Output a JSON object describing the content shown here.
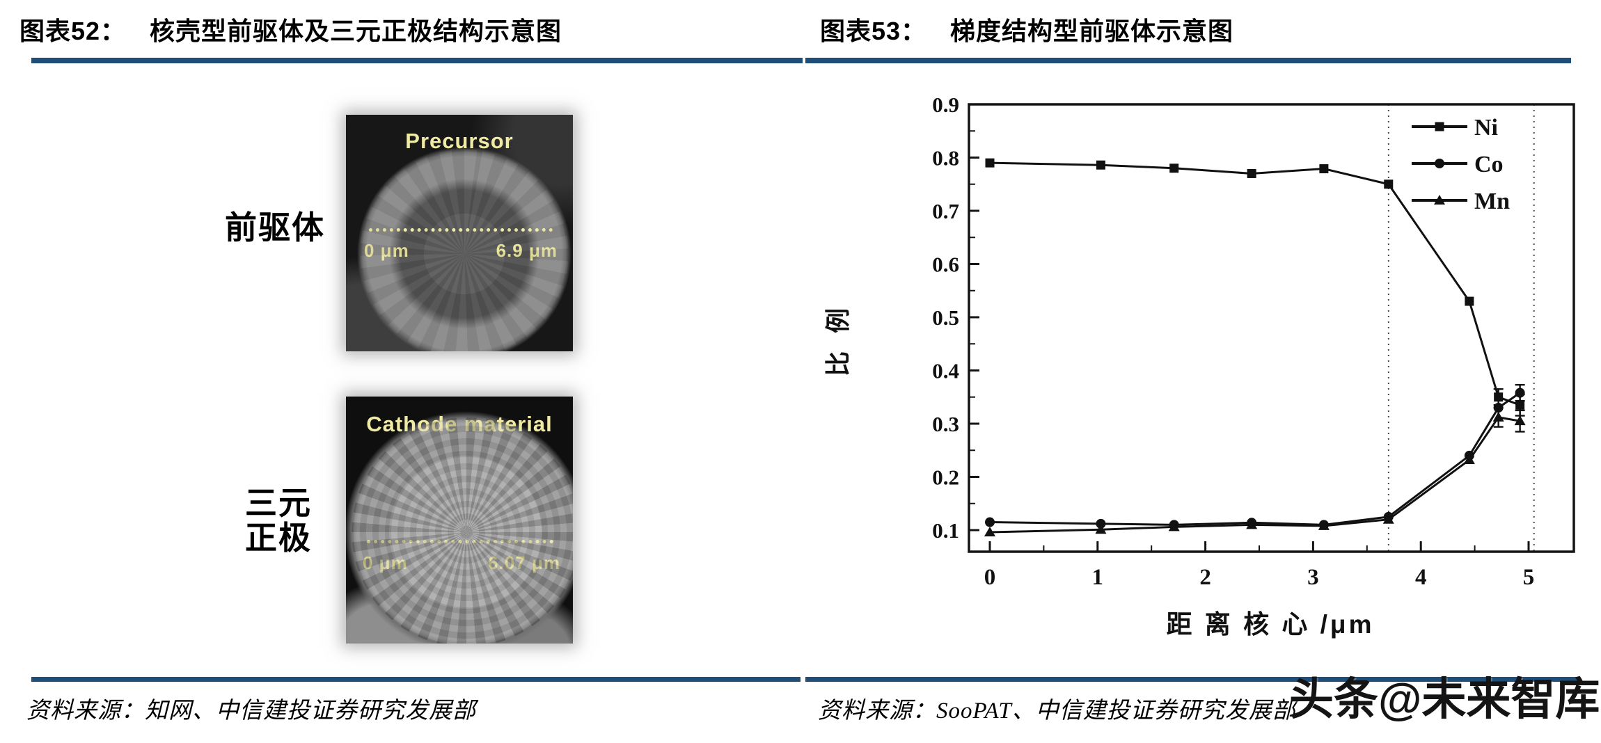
{
  "left_figure": {
    "title_label": "图表52：",
    "title": "核壳型前驱体及三元正极结构示意图",
    "precursor_row_label": "前驱体",
    "cathode_label_line1": "三元",
    "cathode_label_line2": "正极",
    "images": {
      "precursor": {
        "caption": "Precursor",
        "scale_left": "0 μm",
        "scale_right": "6.9 μm"
      },
      "cathode": {
        "caption": "Cathode material",
        "scale_left": "0 μm",
        "scale_right": "6.07 μm"
      }
    },
    "source": "资料来源：知网、中信建投证券研究发展部"
  },
  "right_figure": {
    "title_label": "图表53：",
    "title": "梯度结构型前驱体示意图",
    "source": "资料来源：SooPAT、中信建投证券研究发展部",
    "watermark": "头条@未来智库"
  },
  "colors": {
    "rule_blue": "#1f4e79",
    "ink": "#111111",
    "scalebar_text": "#e9e49c"
  },
  "chart_data": {
    "type": "line",
    "title": "",
    "xlabel": "距 离 核 心 /μm",
    "ylabel": "比 例",
    "x_ticks": [
      0,
      1,
      2,
      3,
      4,
      5
    ],
    "y_ticks": [
      0.1,
      0.2,
      0.3,
      0.4,
      0.5,
      0.6,
      0.7,
      0.8,
      0.9
    ],
    "xlim": [
      -0.2,
      5.45
    ],
    "ylim": [
      0.06,
      0.9
    ],
    "grid": false,
    "legend_position": "top-right",
    "vlines_x": [
      3.7,
      5.05
    ],
    "x": [
      0,
      1.03,
      1.71,
      2.43,
      3.1,
      3.7,
      4.45,
      4.72,
      4.92
    ],
    "series": [
      {
        "name": "Ni",
        "marker": "square",
        "y": [
          0.79,
          0.786,
          0.78,
          0.77,
          0.779,
          0.75,
          0.53,
          0.35,
          0.335
        ],
        "errors": [
          {
            "x": 4.72,
            "y": 0.35,
            "e": 0.015
          },
          {
            "x": 4.92,
            "y": 0.335,
            "e": 0.02
          }
        ]
      },
      {
        "name": "Co",
        "marker": "circle",
        "y": [
          0.115,
          0.112,
          0.11,
          0.114,
          0.11,
          0.125,
          0.24,
          0.33,
          0.358
        ],
        "errors": [
          {
            "x": 4.92,
            "y": 0.358,
            "e": 0.015
          }
        ]
      },
      {
        "name": "Mn",
        "marker": "triangle",
        "y": [
          0.096,
          0.101,
          0.106,
          0.11,
          0.108,
          0.12,
          0.232,
          0.312,
          0.305
        ],
        "errors": [
          {
            "x": 4.72,
            "y": 0.312,
            "e": 0.018
          },
          {
            "x": 4.92,
            "y": 0.305,
            "e": 0.02
          }
        ]
      }
    ]
  }
}
